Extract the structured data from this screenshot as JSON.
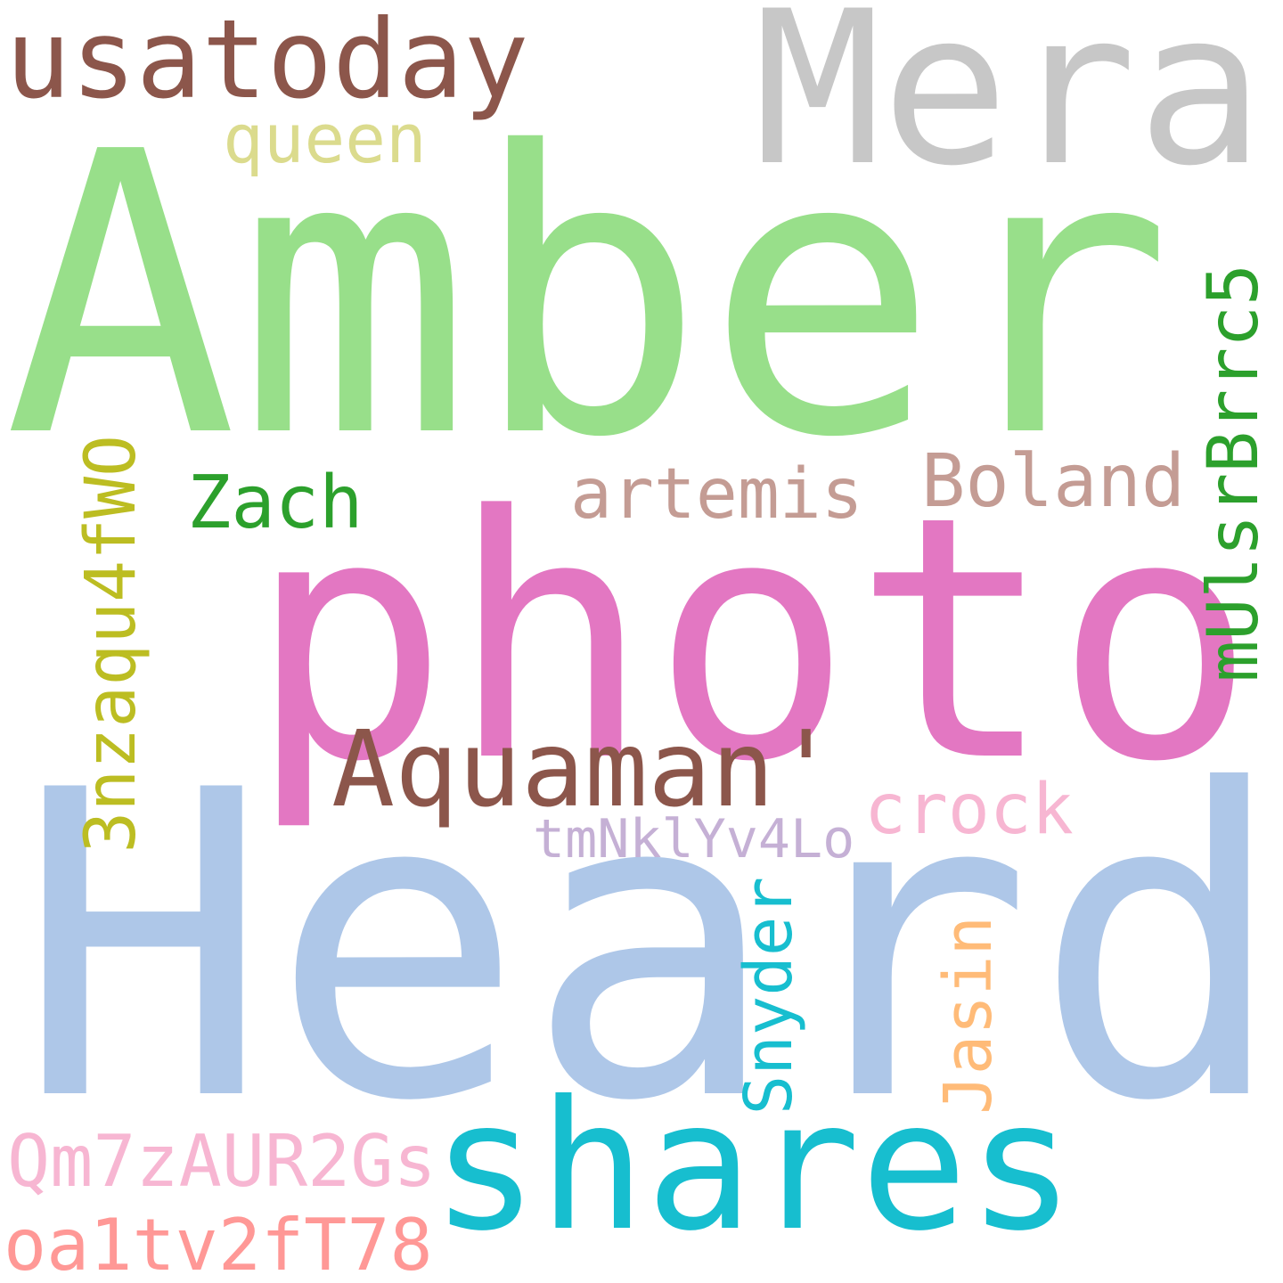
{
  "words": {
    "heard": {
      "text": "Heard",
      "color": "#aec7e8"
    },
    "amber": {
      "text": "Amber",
      "color": "#98df8a"
    },
    "photo": {
      "text": "photo",
      "color": "#e377c2"
    },
    "mera": {
      "text": "Mera",
      "color": "#c7c7c7"
    },
    "shares": {
      "text": "shares",
      "color": "#17becf"
    },
    "usatoday": {
      "text": "usatoday",
      "color": "#8c564b"
    },
    "aquaman": {
      "text": "Aquaman'",
      "color": "#8c564b"
    },
    "mulsrbrrc5": {
      "text": "mUlsrBrrc5",
      "color": "#2ca02c"
    },
    "nzaqu": {
      "text": "3nzaqu4fWO",
      "color": "#bcbd22"
    },
    "qm7z": {
      "text": "Qm7zAUR2Gs",
      "color": "#f7b6d2"
    },
    "oa1t": {
      "text": "oa1tv2fT78",
      "color": "#ff9896"
    },
    "artemis": {
      "text": "artemis",
      "color": "#c49c94"
    },
    "boland": {
      "text": "Boland",
      "color": "#c49c94"
    },
    "zach": {
      "text": "Zach",
      "color": "#2ca02c"
    },
    "queen": {
      "text": "queen",
      "color": "#dbdb8d"
    },
    "crock": {
      "text": "crock",
      "color": "#f7b6d2"
    },
    "snyder": {
      "text": "Snyder",
      "color": "#17becf"
    },
    "jasin": {
      "text": "Jasin",
      "color": "#ffbb78"
    },
    "tmnk": {
      "text": "tmNklYv4Lo",
      "color": "#c5b0d5"
    }
  }
}
